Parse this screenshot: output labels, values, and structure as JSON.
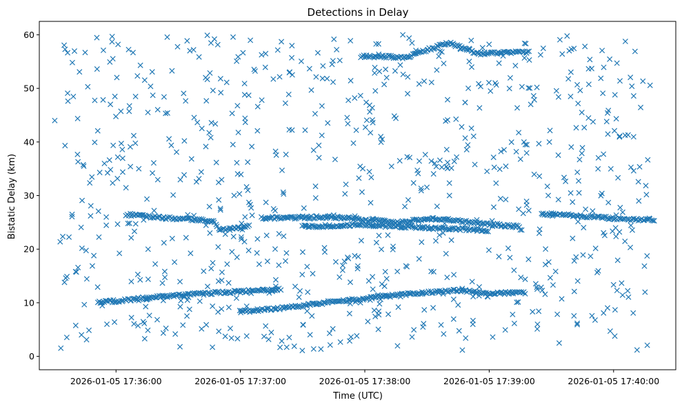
{
  "chart_data": {
    "type": "scatter",
    "title": "Detections in Delay",
    "xlabel": "Time (UTC)",
    "ylabel": "Bistatic Delay (km)",
    "marker": "x",
    "color": "#1f77b4",
    "grid": false,
    "legend": "none",
    "xlim": [
      "2026-01-05 17:35:23",
      "2026-01-05 17:40:30"
    ],
    "ylim": [
      -2.5,
      62.5
    ],
    "x_ticks": [
      "2026-01-05 17:36:00",
      "2026-01-05 17:37:00",
      "2026-01-05 17:38:00",
      "2026-01-05 17:39:00",
      "2026-01-05 17:40:00"
    ],
    "y_ticks": [
      "0",
      "10",
      "20",
      "30",
      "40",
      "50",
      "60"
    ],
    "tracks": [
      {
        "points": [
          [
            "2026-01-05 17:35:51",
            10.1
          ],
          [
            "2026-01-05 17:36:03",
            10.4
          ],
          [
            "2026-01-05 17:36:12",
            10.8
          ],
          [
            "2026-01-05 17:36:30",
            11.4
          ],
          [
            "2026-01-05 17:36:55",
            12.0
          ],
          [
            "2026-01-05 17:37:13",
            12.4
          ],
          [
            "2026-01-05 17:37:20",
            12.5
          ]
        ]
      },
      {
        "points": [
          [
            "2026-01-05 17:37:00",
            8.3
          ],
          [
            "2026-01-05 17:37:25",
            9.2
          ],
          [
            "2026-01-05 17:37:40",
            10.0
          ],
          [
            "2026-01-05 17:38:00",
            10.8
          ],
          [
            "2026-01-05 17:38:25",
            11.8
          ],
          [
            "2026-01-05 17:38:45",
            12.3
          ],
          [
            "2026-01-05 17:39:00",
            11.8
          ],
          [
            "2026-01-05 17:39:18",
            11.8
          ]
        ]
      },
      {
        "points": [
          [
            "2026-01-05 17:36:05",
            26.5
          ],
          [
            "2026-01-05 17:36:25",
            25.8
          ],
          [
            "2026-01-05 17:36:47",
            25.3
          ],
          [
            "2026-01-05 17:36:50",
            23.5
          ],
          [
            "2026-01-05 17:37:05",
            24.3
          ]
        ]
      },
      {
        "points": [
          [
            "2026-01-05 17:37:10",
            25.8
          ],
          [
            "2026-01-05 17:37:45",
            26.0
          ],
          [
            "2026-01-05 17:38:00",
            25.5
          ],
          [
            "2026-01-05 17:38:15",
            25.0
          ],
          [
            "2026-01-05 17:38:35",
            25.7
          ],
          [
            "2026-01-05 17:38:55",
            24.8
          ],
          [
            "2026-01-05 17:39:15",
            24.2
          ]
        ]
      },
      {
        "points": [
          [
            "2026-01-05 17:37:30",
            24.2
          ],
          [
            "2026-01-05 17:38:00",
            24.5
          ],
          [
            "2026-01-05 17:38:30",
            24.0
          ],
          [
            "2026-01-05 17:39:00",
            23.5
          ]
        ]
      },
      {
        "points": [
          [
            "2026-01-05 17:39:25",
            26.6
          ],
          [
            "2026-01-05 17:39:45",
            26.2
          ],
          [
            "2026-01-05 17:40:05",
            25.6
          ],
          [
            "2026-01-05 17:40:20",
            25.4
          ]
        ]
      },
      {
        "points": [
          [
            "2026-01-05 17:37:58",
            56.0
          ],
          [
            "2026-01-05 17:38:20",
            55.8
          ],
          [
            "2026-01-05 17:38:40",
            58.5
          ],
          [
            "2026-01-05 17:38:55",
            56.5
          ],
          [
            "2026-01-05 17:39:20",
            56.8
          ]
        ]
      }
    ],
    "clutter": {
      "count": 820,
      "y_range": [
        1,
        60
      ]
    }
  }
}
